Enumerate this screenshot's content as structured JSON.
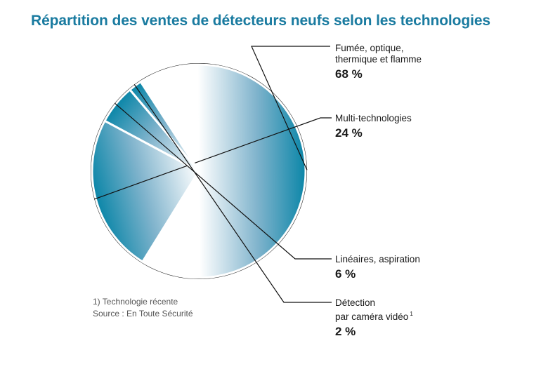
{
  "title": "Répartition des ventes de détecteurs neufs selon les technologies",
  "colors": {
    "title": "#1a7ba0",
    "slice_dark": "#0b86a8",
    "slice_light": "#ffffff",
    "outline": "#111111",
    "separator": "#ffffff"
  },
  "chart_data": {
    "type": "pie",
    "title": "Répartition des ventes de détecteurs neufs selon les technologies",
    "unit": "%",
    "slices": [
      {
        "label_lines": [
          "Fumée, optique,",
          "thermique et flamme"
        ],
        "value": 68,
        "value_label": "68 %"
      },
      {
        "label_lines": [
          "Multi-technologies"
        ],
        "value": 24,
        "value_label": "24 %"
      },
      {
        "label_lines": [
          "Linéaires, aspiration"
        ],
        "value": 6,
        "value_label": "6 %"
      },
      {
        "label_lines": [
          "Détection",
          "par caméra vidéo"
        ],
        "footnote_mark": "1",
        "value": 2,
        "value_label": "2 %"
      }
    ]
  },
  "footnotes": {
    "note1": "1) Technologie récente",
    "source": "Source : En Toute Sécurité"
  }
}
